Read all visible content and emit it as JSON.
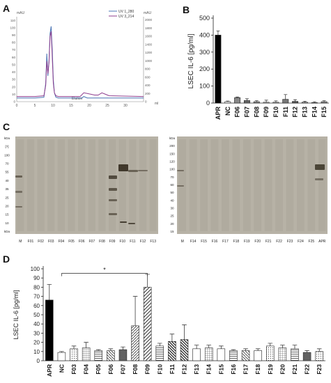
{
  "panels": {
    "a": "A",
    "b": "B",
    "c": "C",
    "d": "D"
  },
  "chart_data": [
    {
      "panel": "A",
      "type": "line",
      "left_unit": "mAU",
      "right_unit": "mAU",
      "x_unit": "ml",
      "xlim": [
        0,
        35
      ],
      "x_ticks": [
        0,
        5,
        10,
        15,
        20,
        25,
        30
      ],
      "left_ylim": [
        0,
        115
      ],
      "left_ticks": [
        0,
        10,
        20,
        30,
        40,
        50,
        60,
        70,
        80,
        90,
        100,
        110
      ],
      "right_ylim": [
        0,
        2080
      ],
      "right_ticks": [
        0,
        200,
        400,
        600,
        800,
        1000,
        1200,
        1400,
        1600,
        1800,
        2000
      ],
      "legend_placement": "top-right",
      "annotation": "Elution",
      "series": [
        {
          "name": "UV 1_280",
          "color": "#4a74b4",
          "axis": "left",
          "x": [
            0,
            5,
            7.5,
            8.0,
            8.3,
            8.6,
            8.9,
            9.2,
            9.5,
            9.8,
            10.1,
            10.4,
            10.8,
            11.5,
            13,
            18,
            18.5,
            19.5,
            20.5,
            21.5,
            22.5,
            23.5,
            24.5,
            25.5,
            35
          ],
          "y": [
            5,
            5,
            6,
            25,
            65,
            35,
            55,
            92,
            102,
            70,
            30,
            12,
            6,
            5,
            5,
            5,
            7,
            5,
            5,
            5,
            5,
            5,
            5,
            5,
            5
          ]
        },
        {
          "name": "UV 3_214",
          "color": "#8e3d8e",
          "axis": "left",
          "x": [
            0,
            5,
            7.5,
            8.0,
            8.3,
            8.6,
            8.9,
            9.2,
            9.5,
            9.8,
            10.1,
            10.4,
            10.8,
            11.5,
            13,
            17.5,
            18.5,
            19.5,
            20.5,
            21.5,
            22.5,
            23.5,
            24.5,
            25.5,
            35
          ],
          "y": [
            7,
            7,
            8,
            22,
            55,
            38,
            52,
            88,
            95,
            60,
            25,
            12,
            8,
            7,
            7,
            7,
            12,
            11,
            10,
            9,
            9,
            12,
            10,
            8,
            7
          ]
        }
      ]
    },
    {
      "panel": "B",
      "type": "bar",
      "ylabel": "LSEC IL-6 [pg/ml]",
      "ylim": [
        0,
        500
      ],
      "y_ticks": [
        0,
        100,
        200,
        300,
        400,
        500
      ],
      "categories": [
        "APR",
        "NC",
        "F06",
        "F07",
        "F08",
        "F09",
        "F10",
        "F11",
        "F12",
        "F13",
        "F14",
        "F15"
      ],
      "values": [
        400,
        8,
        32,
        15,
        8,
        5,
        5,
        22,
        10,
        5,
        3,
        8
      ],
      "errors": [
        25,
        4,
        4,
        10,
        6,
        12,
        8,
        28,
        10,
        6,
        5,
        6
      ]
    },
    {
      "panel": "C",
      "type": "table",
      "left_gel": {
        "markers": [
          "kDa",
          "[?]",
          "100",
          "70",
          "55",
          "40",
          "35",
          "25",
          "20",
          "15",
          "10",
          "kDa"
        ],
        "lanes": [
          "M",
          "F01",
          "F02",
          "F03",
          "F04",
          "F05",
          "F06",
          "F07",
          "F08",
          "F09",
          "F10",
          "F11",
          "F12",
          "F13"
        ]
      },
      "right_gel": {
        "markers": [
          "kDa",
          "200",
          "150",
          "120",
          "100",
          "70",
          "60",
          "50",
          "40",
          "30",
          "25",
          "20",
          "15"
        ],
        "lanes": [
          "M",
          "F14",
          "F15",
          "F16",
          "F17",
          "F18",
          "F19",
          "F20",
          "F21",
          "F22",
          "F23",
          "F24",
          "F25",
          "APR"
        ]
      }
    },
    {
      "panel": "D",
      "type": "bar",
      "ylabel": "LSEC IL-6 [pg/ml]",
      "ylim": [
        0,
        100
      ],
      "y_ticks": [
        0,
        10,
        20,
        30,
        40,
        50,
        60,
        70,
        80,
        90,
        100
      ],
      "significance": "*",
      "significance_between": [
        "NC",
        "F09"
      ],
      "categories": [
        "APR",
        "NC",
        "F03",
        "F04",
        "F05",
        "F06",
        "F07",
        "F08",
        "F09",
        "F10",
        "F11",
        "F12",
        "F13",
        "F14",
        "F15",
        "F16",
        "F17",
        "F18",
        "F19",
        "F20",
        "F21",
        "F22",
        "F23"
      ],
      "values": [
        66,
        9,
        13,
        14,
        11,
        11,
        12,
        38,
        80,
        16,
        21,
        23,
        13,
        14,
        13,
        11,
        11,
        11,
        16,
        14,
        13,
        9,
        10
      ],
      "errors": [
        17,
        1,
        3,
        6,
        1,
        2,
        3,
        32,
        14,
        3,
        8,
        16,
        4,
        3,
        3,
        1,
        2,
        2,
        3,
        3,
        4,
        2,
        3
      ],
      "patterns": [
        "solid",
        "white",
        "dots",
        "grid",
        "hlines",
        "bwdiag",
        "dense",
        "fwdiag",
        "fwdiag-wide",
        "hlines",
        "bwdiag-wide",
        "bwdiag-wide",
        "white",
        "grid",
        "white",
        "hlines",
        "bwdiag",
        "white",
        "dots",
        "grid",
        "hlines",
        "dense",
        "dots"
      ]
    }
  ]
}
